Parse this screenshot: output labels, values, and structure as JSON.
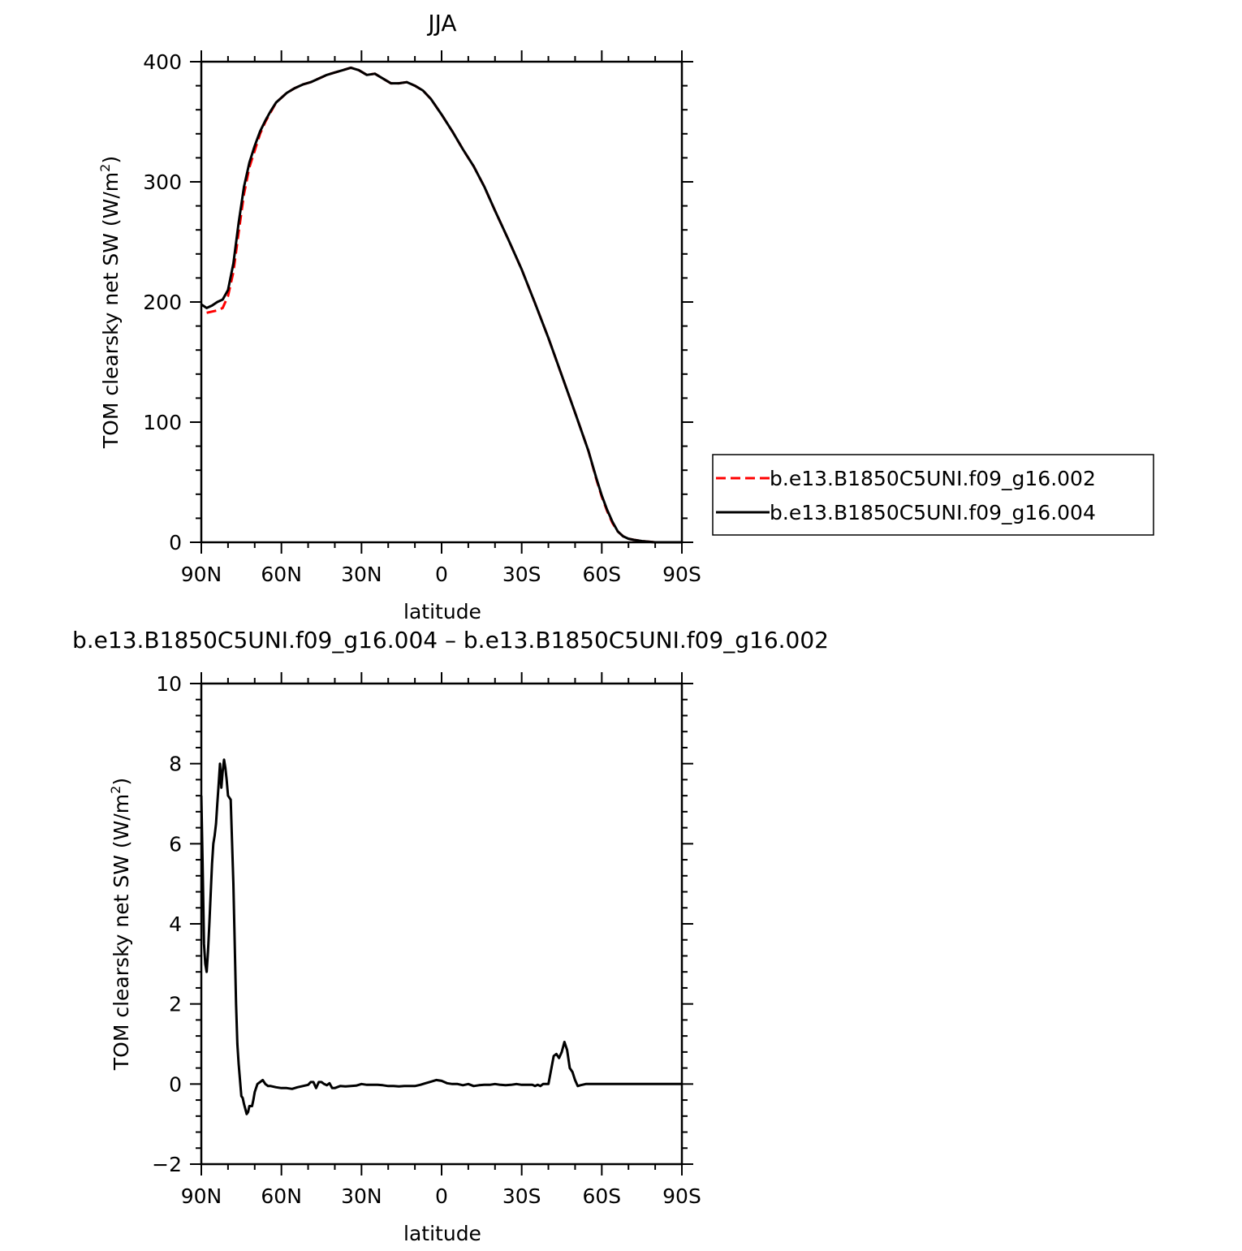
{
  "chart_data": [
    {
      "type": "line",
      "title": "JJA",
      "xlabel": "latitude",
      "ylabel": "TOM clearsky net SW (W/m²)",
      "ylabel_main": "TOM clearsky net SW (W/m",
      "ylabel_sup": "2",
      "ylabel_close": ")",
      "xlim": [
        90,
        -90
      ],
      "ylim": [
        0,
        400
      ],
      "x_ticks": [
        90,
        60,
        30,
        0,
        -30,
        -60,
        -90
      ],
      "x_tick_labels": [
        "90N",
        "60N",
        "30N",
        "0",
        "30S",
        "60S",
        "90S"
      ],
      "y_ticks": [
        0,
        100,
        200,
        300,
        400
      ],
      "y_tick_labels": [
        "0",
        "100",
        "200",
        "300",
        "400"
      ],
      "grid": false,
      "legend_position": "right",
      "series": [
        {
          "name": "b.e13.B1850C5UNI.f09_g16.002",
          "color": "#ff0000",
          "dash": "dashed",
          "points": [
            [
              88,
              191
            ],
            [
              86,
              192
            ],
            [
              84,
              193
            ],
            [
              82,
              195
            ],
            [
              80,
              205
            ],
            [
              78,
              225
            ],
            [
              76,
              258
            ],
            [
              74,
              290
            ],
            [
              72,
              312
            ],
            [
              70,
              326
            ],
            [
              68,
              340
            ],
            [
              66,
              350
            ],
            [
              64,
              358
            ],
            [
              62,
              366
            ],
            [
              60,
              370
            ],
            [
              58,
              374
            ],
            [
              55,
              378
            ],
            [
              52,
              381
            ],
            [
              49,
              383
            ],
            [
              46,
              386
            ],
            [
              43,
              389
            ],
            [
              40,
              391
            ],
            [
              37,
              393
            ],
            [
              34,
              395
            ],
            [
              31,
              393
            ],
            [
              28,
              389
            ],
            [
              25,
              390
            ],
            [
              22,
              386
            ],
            [
              19,
              382
            ],
            [
              16,
              382
            ],
            [
              13,
              383
            ],
            [
              10,
              380
            ],
            [
              7,
              376
            ],
            [
              4,
              369
            ],
            [
              0,
              356
            ],
            [
              -4,
              342
            ],
            [
              -8,
              327
            ],
            [
              -12,
              313
            ],
            [
              -16,
              296
            ],
            [
              -20,
              276
            ],
            [
              -25,
              252
            ],
            [
              -30,
              227
            ],
            [
              -35,
              199
            ],
            [
              -40,
              170
            ],
            [
              -45,
              139
            ],
            [
              -50,
              108
            ],
            [
              -55,
              76
            ],
            [
              -58,
              52
            ],
            [
              -60,
              38
            ],
            [
              -62,
              26
            ],
            [
              -64,
              16
            ],
            [
              -66,
              9
            ],
            [
              -68,
              5
            ],
            [
              -70,
              3
            ],
            [
              -72,
              2
            ],
            [
              -75,
              1
            ],
            [
              -80,
              0
            ],
            [
              -85,
              0
            ],
            [
              -88,
              0
            ]
          ]
        },
        {
          "name": "b.e13.B1850C5UNI.f09_g16.004",
          "color": "#000000",
          "dash": "solid",
          "points": [
            [
              90,
              198
            ],
            [
              88,
              195
            ],
            [
              86,
              197
            ],
            [
              84,
              200
            ],
            [
              82,
              202
            ],
            [
              80,
              210
            ],
            [
              78,
              232
            ],
            [
              76,
              266
            ],
            [
              74,
              296
            ],
            [
              72,
              316
            ],
            [
              70,
              330
            ],
            [
              68,
              342
            ],
            [
              66,
              351
            ],
            [
              64,
              359
            ],
            [
              62,
              366
            ],
            [
              60,
              370
            ],
            [
              58,
              374
            ],
            [
              55,
              378
            ],
            [
              52,
              381
            ],
            [
              49,
              383
            ],
            [
              46,
              386
            ],
            [
              43,
              389
            ],
            [
              40,
              391
            ],
            [
              37,
              393
            ],
            [
              34,
              395
            ],
            [
              31,
              393
            ],
            [
              28,
              389
            ],
            [
              25,
              390
            ],
            [
              22,
              386
            ],
            [
              19,
              382
            ],
            [
              16,
              382
            ],
            [
              13,
              383
            ],
            [
              10,
              380
            ],
            [
              7,
              376
            ],
            [
              4,
              369
            ],
            [
              0,
              356
            ],
            [
              -4,
              342
            ],
            [
              -8,
              327
            ],
            [
              -12,
              313
            ],
            [
              -16,
              296
            ],
            [
              -20,
              276
            ],
            [
              -25,
              252
            ],
            [
              -30,
              227
            ],
            [
              -35,
              199
            ],
            [
              -40,
              170
            ],
            [
              -45,
              139
            ],
            [
              -50,
              108
            ],
            [
              -55,
              76
            ],
            [
              -58,
              53
            ],
            [
              -60,
              39
            ],
            [
              -62,
              27
            ],
            [
              -64,
              17
            ],
            [
              -66,
              9
            ],
            [
              -68,
              5
            ],
            [
              -70,
              3
            ],
            [
              -72,
              2
            ],
            [
              -75,
              1
            ],
            [
              -80,
              0
            ],
            [
              -85,
              0
            ],
            [
              -90,
              0
            ]
          ]
        }
      ]
    },
    {
      "type": "line",
      "title": "b.e13.B1850C5UNI.f09_g16.004 – b.e13.B1850C5UNI.f09_g16.002",
      "xlabel": "latitude",
      "ylabel": "TOM clearsky net SW (W/m²)",
      "ylabel_main": "TOM clearsky net SW (W/m",
      "ylabel_sup": "2",
      "ylabel_close": ")",
      "xlim": [
        90,
        -90
      ],
      "ylim": [
        -2,
        10
      ],
      "x_ticks": [
        90,
        60,
        30,
        0,
        -30,
        -60,
        -90
      ],
      "x_tick_labels": [
        "90N",
        "60N",
        "30N",
        "0",
        "30S",
        "60S",
        "90S"
      ],
      "y_ticks": [
        -2,
        0,
        2,
        4,
        6,
        8,
        10
      ],
      "y_tick_labels": [
        "−2",
        "0",
        "2",
        "4",
        "6",
        "8",
        "10"
      ],
      "grid": false,
      "series": [
        {
          "color": "#000000",
          "dash": "solid",
          "points": [
            [
              90,
              7.2
            ],
            [
              89.5,
              5.5
            ],
            [
              89,
              3.5
            ],
            [
              88.5,
              3.0
            ],
            [
              88,
              2.8
            ],
            [
              87.5,
              3.3
            ],
            [
              87,
              4.0
            ],
            [
              86,
              5.5
            ],
            [
              85.5,
              6.0
            ],
            [
              85,
              6.2
            ],
            [
              84.5,
              6.5
            ],
            [
              84,
              7.0
            ],
            [
              83.5,
              7.5
            ],
            [
              83,
              8.0
            ],
            [
              82.5,
              7.4
            ],
            [
              82,
              7.8
            ],
            [
              81.5,
              8.1
            ],
            [
              81,
              7.9
            ],
            [
              80.5,
              7.6
            ],
            [
              80,
              7.2
            ],
            [
              79,
              7.1
            ],
            [
              78,
              5.0
            ],
            [
              77,
              2.0
            ],
            [
              76.5,
              1.0
            ],
            [
              76,
              0.5
            ],
            [
              75,
              -0.3
            ],
            [
              74.5,
              -0.35
            ],
            [
              74,
              -0.5
            ],
            [
              73,
              -0.75
            ],
            [
              72.5,
              -0.7
            ],
            [
              72,
              -0.55
            ],
            [
              71,
              -0.55
            ],
            [
              70.5,
              -0.4
            ],
            [
              70,
              -0.2
            ],
            [
              69,
              0.0
            ],
            [
              68,
              0.05
            ],
            [
              67,
              0.1
            ],
            [
              66,
              0.0
            ],
            [
              65,
              -0.05
            ],
            [
              64,
              -0.05
            ],
            [
              62,
              -0.08
            ],
            [
              60,
              -0.1
            ],
            [
              58,
              -0.1
            ],
            [
              56,
              -0.12
            ],
            [
              54,
              -0.08
            ],
            [
              52,
              -0.05
            ],
            [
              50,
              -0.02
            ],
            [
              49,
              0.05
            ],
            [
              48,
              0.05
            ],
            [
              47,
              -0.1
            ],
            [
              46,
              0.05
            ],
            [
              45,
              0.05
            ],
            [
              44,
              0.0
            ],
            [
              43,
              -0.03
            ],
            [
              42,
              0.02
            ],
            [
              41,
              -0.1
            ],
            [
              40,
              -0.1
            ],
            [
              38,
              -0.05
            ],
            [
              36,
              -0.06
            ],
            [
              34,
              -0.05
            ],
            [
              32,
              -0.04
            ],
            [
              30,
              0.0
            ],
            [
              28,
              -0.02
            ],
            [
              26,
              -0.02
            ],
            [
              24,
              -0.02
            ],
            [
              22,
              -0.03
            ],
            [
              20,
              -0.05
            ],
            [
              18,
              -0.05
            ],
            [
              16,
              -0.06
            ],
            [
              14,
              -0.05
            ],
            [
              12,
              -0.05
            ],
            [
              10,
              -0.05
            ],
            [
              8,
              -0.02
            ],
            [
              6,
              0.02
            ],
            [
              4,
              0.06
            ],
            [
              2,
              0.1
            ],
            [
              0,
              0.08
            ],
            [
              -2,
              0.02
            ],
            [
              -4,
              0.0
            ],
            [
              -6,
              0.0
            ],
            [
              -8,
              -0.03
            ],
            [
              -10,
              0.0
            ],
            [
              -12,
              -0.05
            ],
            [
              -14,
              -0.03
            ],
            [
              -16,
              -0.02
            ],
            [
              -18,
              -0.02
            ],
            [
              -20,
              0.0
            ],
            [
              -22,
              -0.02
            ],
            [
              -24,
              -0.03
            ],
            [
              -26,
              -0.02
            ],
            [
              -28,
              0.0
            ],
            [
              -30,
              -0.02
            ],
            [
              -32,
              -0.02
            ],
            [
              -34,
              -0.02
            ],
            [
              -35,
              -0.05
            ],
            [
              -36,
              -0.02
            ],
            [
              -37,
              -0.05
            ],
            [
              -38,
              0.0
            ],
            [
              -40,
              0.0
            ],
            [
              -42,
              0.7
            ],
            [
              -43,
              0.75
            ],
            [
              -44,
              0.65
            ],
            [
              -45,
              0.8
            ],
            [
              -46,
              1.05
            ],
            [
              -47,
              0.85
            ],
            [
              -48,
              0.4
            ],
            [
              -49,
              0.3
            ],
            [
              -50,
              0.1
            ],
            [
              -51,
              -0.05
            ],
            [
              -52,
              -0.03
            ],
            [
              -54,
              0.0
            ],
            [
              -56,
              0.0
            ],
            [
              -60,
              0.0
            ],
            [
              -70,
              0.0
            ],
            [
              -80,
              0.0
            ],
            [
              -90,
              0.0
            ]
          ]
        }
      ]
    }
  ]
}
